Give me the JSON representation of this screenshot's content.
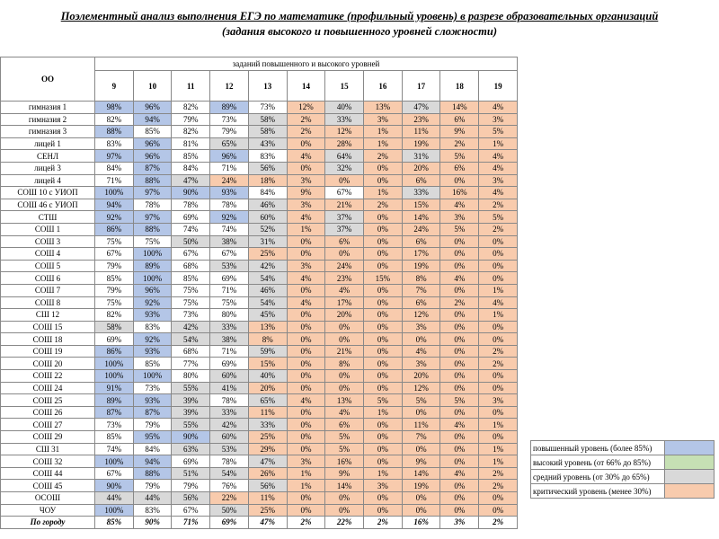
{
  "header": {
    "line1": "Поэлементный анализ выполнения ЕГЭ по математике (профильный уровень) в разрезе образовательных организаций",
    "line2": "(задания высокого и повышенного уровней сложности)"
  },
  "table": {
    "org_header": "ОО",
    "group_header": "заданий повышенного и высокого уровней",
    "columns": [
      "9",
      "10",
      "11",
      "12",
      "13",
      "14",
      "15",
      "16",
      "17",
      "18",
      "19"
    ],
    "rows": [
      {
        "name": "гимназия 1",
        "values": [
          "98%",
          "96%",
          "82%",
          "89%",
          "73%",
          "12%",
          "40%",
          "13%",
          "47%",
          "14%",
          "4%"
        ]
      },
      {
        "name": "гимназия 2",
        "values": [
          "82%",
          "94%",
          "79%",
          "73%",
          "58%",
          "2%",
          "33%",
          "3%",
          "23%",
          "6%",
          "3%"
        ]
      },
      {
        "name": "гимназия 3",
        "values": [
          "88%",
          "85%",
          "82%",
          "79%",
          "58%",
          "2%",
          "12%",
          "1%",
          "11%",
          "9%",
          "5%"
        ]
      },
      {
        "name": "лицей 1",
        "values": [
          "83%",
          "96%",
          "81%",
          "65%",
          "43%",
          "0%",
          "28%",
          "1%",
          "19%",
          "2%",
          "1%"
        ]
      },
      {
        "name": "СЕНЛ",
        "values": [
          "97%",
          "96%",
          "85%",
          "96%",
          "83%",
          "4%",
          "64%",
          "2%",
          "31%",
          "5%",
          "4%"
        ]
      },
      {
        "name": "лицей 3",
        "values": [
          "84%",
          "87%",
          "84%",
          "71%",
          "56%",
          "0%",
          "32%",
          "0%",
          "20%",
          "6%",
          "4%"
        ]
      },
      {
        "name": "лицей 4",
        "values": [
          "71%",
          "88%",
          "47%",
          "24%",
          "18%",
          "3%",
          "0%",
          "0%",
          "6%",
          "0%",
          "3%"
        ]
      },
      {
        "name": "СОШ 10 с УИОП",
        "values": [
          "100%",
          "97%",
          "90%",
          "93%",
          "84%",
          "9%",
          "67%",
          "1%",
          "33%",
          "16%",
          "4%"
        ]
      },
      {
        "name": "СОШ 46 с УИОП",
        "values": [
          "94%",
          "78%",
          "78%",
          "78%",
          "46%",
          "3%",
          "21%",
          "2%",
          "15%",
          "4%",
          "2%"
        ]
      },
      {
        "name": "СТШ",
        "values": [
          "92%",
          "97%",
          "69%",
          "92%",
          "60%",
          "4%",
          "37%",
          "0%",
          "14%",
          "3%",
          "5%"
        ]
      },
      {
        "name": "СОШ 1",
        "values": [
          "86%",
          "88%",
          "74%",
          "74%",
          "52%",
          "1%",
          "37%",
          "0%",
          "24%",
          "5%",
          "2%"
        ]
      },
      {
        "name": "СОШ 3",
        "values": [
          "75%",
          "75%",
          "50%",
          "38%",
          "31%",
          "0%",
          "6%",
          "0%",
          "6%",
          "0%",
          "0%"
        ]
      },
      {
        "name": "СОШ 4",
        "values": [
          "67%",
          "100%",
          "67%",
          "67%",
          "25%",
          "0%",
          "0%",
          "0%",
          "17%",
          "0%",
          "0%"
        ]
      },
      {
        "name": "СОШ 5",
        "values": [
          "79%",
          "89%",
          "68%",
          "53%",
          "42%",
          "3%",
          "24%",
          "0%",
          "19%",
          "0%",
          "0%"
        ]
      },
      {
        "name": "СОШ 6",
        "values": [
          "85%",
          "100%",
          "85%",
          "69%",
          "54%",
          "4%",
          "23%",
          "15%",
          "8%",
          "4%",
          "0%"
        ]
      },
      {
        "name": "СОШ 7",
        "values": [
          "79%",
          "96%",
          "75%",
          "71%",
          "46%",
          "0%",
          "4%",
          "0%",
          "7%",
          "0%",
          "1%"
        ]
      },
      {
        "name": "СОШ 8",
        "values": [
          "75%",
          "92%",
          "75%",
          "75%",
          "54%",
          "4%",
          "17%",
          "0%",
          "6%",
          "2%",
          "4%"
        ]
      },
      {
        "name": "СШ 12",
        "values": [
          "82%",
          "93%",
          "73%",
          "80%",
          "45%",
          "0%",
          "20%",
          "0%",
          "12%",
          "0%",
          "1%"
        ]
      },
      {
        "name": "СОШ 15",
        "values": [
          "58%",
          "83%",
          "42%",
          "33%",
          "13%",
          "0%",
          "0%",
          "0%",
          "3%",
          "0%",
          "0%"
        ]
      },
      {
        "name": "СОШ 18",
        "values": [
          "69%",
          "92%",
          "54%",
          "38%",
          "8%",
          "0%",
          "0%",
          "0%",
          "0%",
          "0%",
          "0%"
        ]
      },
      {
        "name": "СОШ 19",
        "values": [
          "86%",
          "93%",
          "68%",
          "71%",
          "59%",
          "0%",
          "21%",
          "0%",
          "4%",
          "0%",
          "2%"
        ]
      },
      {
        "name": "СОШ 20",
        "values": [
          "100%",
          "85%",
          "77%",
          "69%",
          "15%",
          "0%",
          "8%",
          "0%",
          "3%",
          "0%",
          "2%"
        ]
      },
      {
        "name": "СОШ 22",
        "values": [
          "100%",
          "100%",
          "80%",
          "60%",
          "40%",
          "0%",
          "0%",
          "0%",
          "20%",
          "0%",
          "0%"
        ]
      },
      {
        "name": "СОШ 24",
        "values": [
          "91%",
          "73%",
          "55%",
          "41%",
          "20%",
          "0%",
          "0%",
          "0%",
          "12%",
          "0%",
          "0%"
        ]
      },
      {
        "name": "СОШ 25",
        "values": [
          "89%",
          "93%",
          "39%",
          "78%",
          "65%",
          "4%",
          "13%",
          "5%",
          "5%",
          "5%",
          "3%"
        ]
      },
      {
        "name": "СОШ 26",
        "values": [
          "87%",
          "87%",
          "39%",
          "33%",
          "11%",
          "0%",
          "4%",
          "1%",
          "0%",
          "0%",
          "0%"
        ]
      },
      {
        "name": "СОШ 27",
        "values": [
          "73%",
          "79%",
          "55%",
          "42%",
          "33%",
          "0%",
          "6%",
          "0%",
          "11%",
          "4%",
          "1%"
        ]
      },
      {
        "name": "СОШ 29",
        "values": [
          "85%",
          "95%",
          "90%",
          "60%",
          "25%",
          "0%",
          "5%",
          "0%",
          "7%",
          "0%",
          "0%"
        ]
      },
      {
        "name": "СШ 31",
        "values": [
          "74%",
          "84%",
          "63%",
          "53%",
          "29%",
          "0%",
          "5%",
          "0%",
          "0%",
          "0%",
          "1%"
        ]
      },
      {
        "name": "СОШ 32",
        "values": [
          "100%",
          "94%",
          "69%",
          "78%",
          "47%",
          "3%",
          "16%",
          "0%",
          "9%",
          "0%",
          "1%"
        ]
      },
      {
        "name": "СОШ 44",
        "values": [
          "67%",
          "88%",
          "51%",
          "54%",
          "26%",
          "1%",
          "9%",
          "1%",
          "14%",
          "4%",
          "2%"
        ]
      },
      {
        "name": "СОШ 45",
        "values": [
          "90%",
          "79%",
          "79%",
          "76%",
          "56%",
          "1%",
          "14%",
          "3%",
          "19%",
          "0%",
          "2%"
        ]
      },
      {
        "name": "ОСОШ",
        "values": [
          "44%",
          "44%",
          "56%",
          "22%",
          "11%",
          "0%",
          "0%",
          "0%",
          "0%",
          "0%",
          "0%"
        ]
      },
      {
        "name": "ЧОУ",
        "values": [
          "100%",
          "83%",
          "67%",
          "50%",
          "25%",
          "0%",
          "0%",
          "0%",
          "0%",
          "0%",
          "0%"
        ]
      }
    ],
    "total": {
      "name": "По городу",
      "values": [
        "85%",
        "90%",
        "71%",
        "69%",
        "47%",
        "2%",
        "22%",
        "2%",
        "16%",
        "3%",
        "2%"
      ]
    }
  },
  "legend": [
    {
      "label": "повышенный уровень (более 85%)",
      "color": "#b4c6e7"
    },
    {
      "label": "высокий уровень (от 66% до 85%)",
      "color": "#c6e0b4"
    },
    {
      "label": "средний уровень (от 30% до 65%)",
      "color": "#d9d9d9"
    },
    {
      "label": "критический уровень (менее 30%)",
      "color": "#f8cbad"
    }
  ]
}
